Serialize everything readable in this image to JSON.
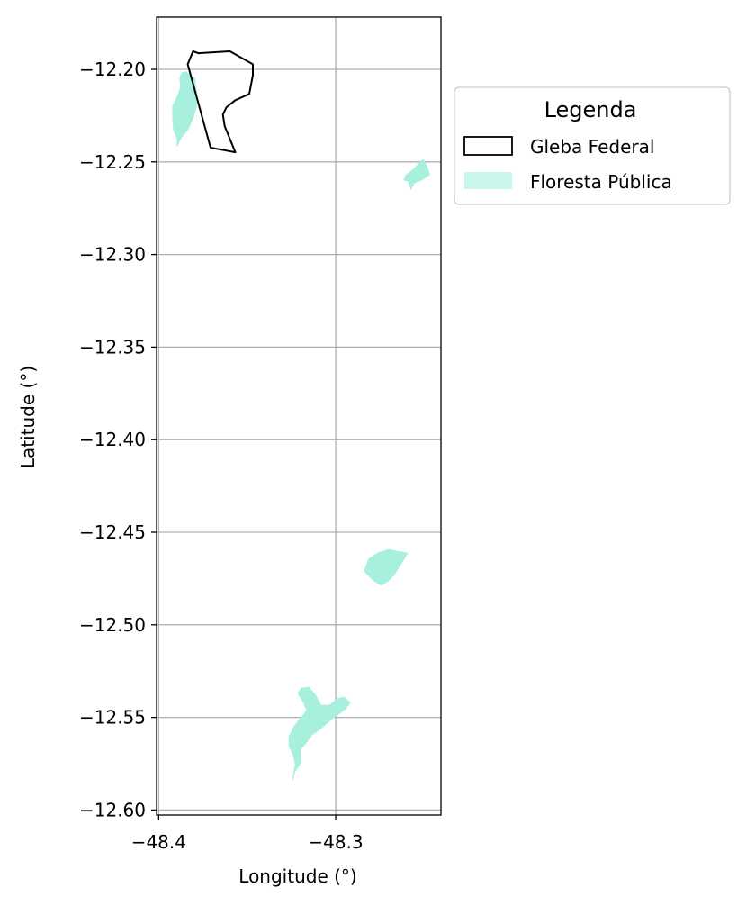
{
  "chart_data": {
    "type": "map",
    "xlabel": "Longitude (°)",
    "ylabel": "Latitude (°)",
    "xlim": [
      -48.4012,
      -48.2405
    ],
    "ylim": [
      -12.6027,
      -12.1718
    ],
    "grid": true,
    "x_ticks": [
      {
        "value": -48.4,
        "label": "−48.4"
      },
      {
        "value": -48.3,
        "label": "−48.3"
      }
    ],
    "y_ticks": [
      {
        "value": -12.2,
        "label": "−12.20"
      },
      {
        "value": -12.25,
        "label": "−12.25"
      },
      {
        "value": -12.3,
        "label": "−12.30"
      },
      {
        "value": -12.35,
        "label": "−12.35"
      },
      {
        "value": -12.4,
        "label": "−12.40"
      },
      {
        "value": -12.45,
        "label": "−12.45"
      },
      {
        "value": -12.5,
        "label": "−12.50"
      },
      {
        "value": -12.55,
        "label": "−12.55"
      },
      {
        "value": -12.6,
        "label": "−12.60"
      }
    ],
    "legend": {
      "title": "Legenda",
      "placement": "outside-right-top",
      "entries": [
        {
          "label": "Gleba Federal",
          "style": "outline",
          "color": "#000000"
        },
        {
          "label": "Floresta Pública",
          "style": "fill",
          "color": "#a8f0de"
        }
      ]
    },
    "layers": [
      {
        "name": "Gleba Federal",
        "style": "outline",
        "color": "#000000",
        "polygons": [
          [
            [
              -48.3836,
              -12.1973
            ],
            [
              -48.3806,
              -12.1903
            ],
            [
              -48.3776,
              -12.1913
            ],
            [
              -48.3597,
              -12.1903
            ],
            [
              -48.3468,
              -12.1973
            ],
            [
              -48.3468,
              -12.2031
            ],
            [
              -48.3488,
              -12.2133
            ],
            [
              -48.3567,
              -12.2167
            ],
            [
              -48.3617,
              -12.2205
            ],
            [
              -48.3637,
              -12.2244
            ],
            [
              -48.3627,
              -12.2307
            ],
            [
              -48.3567,
              -12.2448
            ],
            [
              -48.3707,
              -12.2423
            ],
            [
              -48.3836,
              -12.1973
            ]
          ]
        ]
      },
      {
        "name": "Floresta Pública",
        "style": "fill",
        "color": "#a8f0de",
        "polygons": [
          [
            [
              -48.3871,
              -12.202
            ],
            [
              -48.3846,
              -12.2013
            ],
            [
              -48.3796,
              -12.205
            ],
            [
              -48.3786,
              -12.2128
            ],
            [
              -48.3786,
              -12.22
            ],
            [
              -48.3806,
              -12.2264
            ],
            [
              -48.3836,
              -12.2327
            ],
            [
              -48.3866,
              -12.236
            ],
            [
              -48.3881,
              -12.2384
            ],
            [
              -48.3896,
              -12.2414
            ],
            [
              -48.3896,
              -12.2372
            ],
            [
              -48.3916,
              -12.2327
            ],
            [
              -48.3921,
              -12.2264
            ],
            [
              -48.3921,
              -12.22
            ],
            [
              -48.3891,
              -12.2142
            ],
            [
              -48.3876,
              -12.2094
            ],
            [
              -48.3881,
              -12.205
            ],
            [
              -48.3871,
              -12.202
            ]
          ],
          [
            [
              -48.2505,
              -12.2488
            ],
            [
              -48.248,
              -12.2535
            ],
            [
              -48.247,
              -12.2569
            ],
            [
              -48.2515,
              -12.2598
            ],
            [
              -48.2555,
              -12.2613
            ],
            [
              -48.2575,
              -12.2647
            ],
            [
              -48.259,
              -12.2603
            ],
            [
              -48.2615,
              -12.2598
            ],
            [
              -48.26,
              -12.2569
            ],
            [
              -48.256,
              -12.254
            ],
            [
              -48.2525,
              -12.2506
            ],
            [
              -48.2505,
              -12.2488
            ]
          ],
          [
            [
              -48.2838,
              -12.471
            ],
            [
              -48.2814,
              -12.4646
            ],
            [
              -48.2764,
              -12.4612
            ],
            [
              -48.2699,
              -12.4593
            ],
            [
              -48.2654,
              -12.4603
            ],
            [
              -48.2594,
              -12.4612
            ],
            [
              -48.2624,
              -12.4661
            ],
            [
              -48.2669,
              -12.4729
            ],
            [
              -48.2709,
              -12.4768
            ],
            [
              -48.2744,
              -12.4787
            ],
            [
              -48.2789,
              -12.4758
            ],
            [
              -48.2838,
              -12.471
            ]
          ],
          [
            [
              -48.3228,
              -12.5753
            ],
            [
              -48.3243,
              -12.584
            ],
            [
              -48.3233,
              -12.5797
            ],
            [
              -48.3198,
              -12.5744
            ],
            [
              -48.3198,
              -12.5671
            ],
            [
              -48.3163,
              -12.5632
            ],
            [
              -48.3133,
              -12.5593
            ],
            [
              -48.3083,
              -12.5559
            ],
            [
              -48.3018,
              -12.5506
            ],
            [
              -48.2943,
              -12.5453
            ],
            [
              -48.2918,
              -12.542
            ],
            [
              -48.2953,
              -12.539
            ],
            [
              -48.2993,
              -12.54
            ],
            [
              -48.3033,
              -12.5434
            ],
            [
              -48.3083,
              -12.5434
            ],
            [
              -48.3113,
              -12.538
            ],
            [
              -48.3153,
              -12.5337
            ],
            [
              -48.3193,
              -12.5342
            ],
            [
              -48.3213,
              -12.5371
            ],
            [
              -48.3183,
              -12.5415
            ],
            [
              -48.3163,
              -12.5463
            ],
            [
              -48.3193,
              -12.5501
            ],
            [
              -48.3233,
              -12.5545
            ],
            [
              -48.3263,
              -12.5603
            ],
            [
              -48.3263,
              -12.5656
            ],
            [
              -48.3238,
              -12.5705
            ],
            [
              -48.3228,
              -12.5753
            ]
          ]
        ]
      }
    ]
  }
}
